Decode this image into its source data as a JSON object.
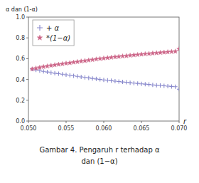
{
  "chart_data": {
    "type": "scatter",
    "y_label": "α dan (1-α)",
    "x_label": "r",
    "annotations": [
      "Gambar 4. Pengaruh r terhadap α",
      "dan (1−α)"
    ],
    "x": [
      0.0505,
      0.051,
      0.0515,
      0.052,
      0.0525,
      0.053,
      0.0535,
      0.054,
      0.0545,
      0.055,
      0.0555,
      0.056,
      0.0565,
      0.057,
      0.0575,
      0.058,
      0.0585,
      0.059,
      0.0595,
      0.06,
      0.0605,
      0.061,
      0.0615,
      0.062,
      0.0625,
      0.063,
      0.0635,
      0.064,
      0.0645,
      0.065,
      0.0655,
      0.066,
      0.0665,
      0.067,
      0.0675,
      0.068,
      0.0685,
      0.069,
      0.0695,
      0.07
    ],
    "series": [
      {
        "name": "+ α",
        "color": "#8888cc",
        "marker": "plus",
        "values": [
          0.5,
          0.492,
          0.485,
          0.478,
          0.472,
          0.466,
          0.46,
          0.455,
          0.45,
          0.445,
          0.44,
          0.435,
          0.43,
          0.425,
          0.42,
          0.415,
          0.41,
          0.405,
          0.4,
          0.396,
          0.392,
          0.388,
          0.384,
          0.38,
          0.376,
          0.373,
          0.369,
          0.365,
          0.362,
          0.358,
          0.355,
          0.352,
          0.348,
          0.345,
          0.342,
          0.339,
          0.336,
          0.333,
          0.33,
          0.307
        ]
      },
      {
        "name": "*(1−α)",
        "color": "#cc6688",
        "marker": "star",
        "values": [
          0.5,
          0.508,
          0.515,
          0.522,
          0.528,
          0.534,
          0.54,
          0.545,
          0.55,
          0.555,
          0.56,
          0.565,
          0.57,
          0.575,
          0.58,
          0.585,
          0.59,
          0.595,
          0.6,
          0.604,
          0.608,
          0.612,
          0.616,
          0.62,
          0.624,
          0.627,
          0.631,
          0.635,
          0.638,
          0.642,
          0.645,
          0.648,
          0.652,
          0.655,
          0.658,
          0.661,
          0.664,
          0.667,
          0.67,
          0.693
        ]
      }
    ],
    "xlim": [
      0.05,
      0.07
    ],
    "ylim": [
      0.0,
      1.0
    ],
    "xticks": [
      {
        "value": 0.05,
        "label": "0.050"
      },
      0.055,
      {
        "value": 0.06,
        "label": "0.060"
      },
      0.065,
      {
        "value": 0.07,
        "label": "0.070"
      }
    ],
    "yticks": [
      {
        "value": 0,
        "label": "0.0"
      },
      0.2,
      0.4,
      0.6,
      0.8,
      {
        "value": 1,
        "label": "1.0"
      }
    ],
    "grid": false,
    "legend": "upper left"
  }
}
